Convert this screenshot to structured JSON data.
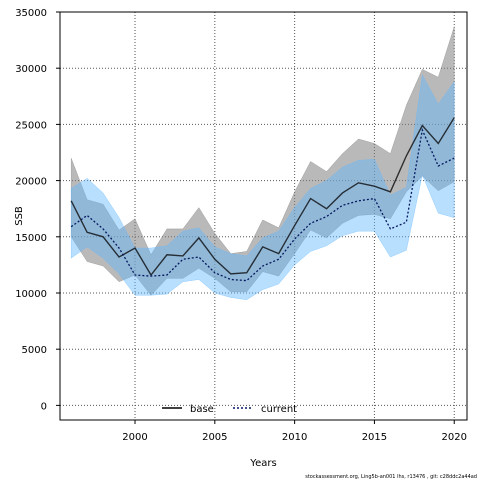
{
  "chart_data": {
    "type": "line",
    "title": "",
    "xlabel": "Years",
    "ylabel": "SSB",
    "xlim": [
      1995.3,
      2020.8
    ],
    "ylim": [
      -1300,
      35000
    ],
    "x_ticks": [
      2000,
      2005,
      2010,
      2015,
      2020
    ],
    "y_ticks": [
      0,
      5000,
      10000,
      15000,
      20000,
      25000,
      30000,
      35000
    ],
    "grid": true,
    "legend_position": "bottom-center",
    "x": [
      1996,
      1997,
      1998,
      1999,
      2000,
      2001,
      2002,
      2003,
      2004,
      2005,
      2006,
      2007,
      2008,
      2009,
      2010,
      2011,
      2012,
      2013,
      2014,
      2015,
      2016,
      2017,
      2018,
      2019,
      2020
    ],
    "series": [
      {
        "name": "base",
        "color": "#000000",
        "line_style": "solid",
        "band_color": "#7f7f7f",
        "values": [
          18200,
          15400,
          15000,
          13200,
          14000,
          11600,
          13400,
          13300,
          14900,
          13000,
          11700,
          11800,
          14100,
          13500,
          16000,
          18400,
          17500,
          18900,
          19800,
          19500,
          19000,
          22200,
          24900,
          23300,
          25600
        ],
        "lower": [
          15000,
          12800,
          12400,
          11000,
          11600,
          9800,
          11300,
          11300,
          12200,
          11300,
          10100,
          10100,
          11900,
          11500,
          13500,
          15600,
          14900,
          16200,
          16900,
          17000,
          16600,
          19000,
          20400,
          19100,
          19900
        ],
        "upper": [
          22000,
          18300,
          17900,
          15600,
          16600,
          13400,
          15700,
          15700,
          17600,
          15300,
          13500,
          13700,
          16500,
          15800,
          19000,
          21700,
          20800,
          22400,
          23700,
          23300,
          22400,
          26700,
          29900,
          29200,
          33700
        ]
      },
      {
        "name": "current",
        "color": "#04195e",
        "line_style": "dotted",
        "band_color": "#63b8ff",
        "values": [
          15900,
          16900,
          15700,
          14000,
          11600,
          11500,
          11600,
          13000,
          13200,
          11800,
          11200,
          11100,
          12400,
          13000,
          14800,
          16200,
          16800,
          17800,
          18200,
          18400,
          15700,
          16300,
          24500,
          21300,
          22000
        ],
        "lower": [
          13100,
          14100,
          13100,
          11700,
          9800,
          9800,
          9900,
          11000,
          11200,
          10000,
          9600,
          9400,
          10300,
          10800,
          12500,
          13700,
          14200,
          15100,
          15500,
          15500,
          13200,
          13800,
          20500,
          17100,
          16700
        ],
        "upper": [
          19300,
          20200,
          18900,
          16700,
          14000,
          14000,
          14200,
          15500,
          15800,
          14100,
          13500,
          13300,
          14900,
          15500,
          17600,
          19300,
          20000,
          21200,
          21800,
          21900,
          18700,
          19400,
          29400,
          26800,
          28800
        ]
      }
    ],
    "footnote": "stockassessment.org,  Ling5b-an001  lhs,  r13476 ,  git:  c28ddc2a44ad"
  }
}
